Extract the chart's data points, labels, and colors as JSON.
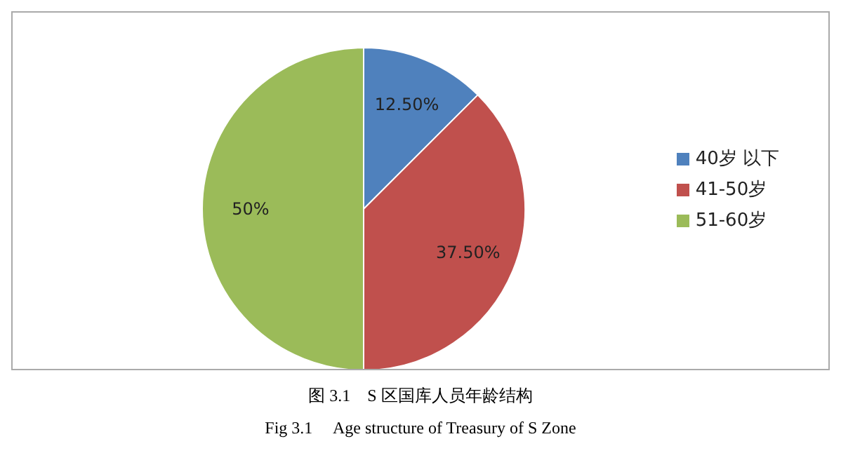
{
  "chart_data": {
    "type": "pie",
    "categories": [
      "40岁 以下",
      "41-50岁",
      "51-60岁"
    ],
    "values": [
      12.5,
      37.5,
      50
    ],
    "colors": [
      "#4f81bd",
      "#c0504d",
      "#9bbb59"
    ],
    "value_labels": [
      "12.50%",
      "37.50%",
      "50%"
    ],
    "legend": "right",
    "annotations": [
      "图 3.1　S 区国库人员年龄结构",
      "Fig 3.1　 Age structure of Treasury of S Zone"
    ]
  }
}
